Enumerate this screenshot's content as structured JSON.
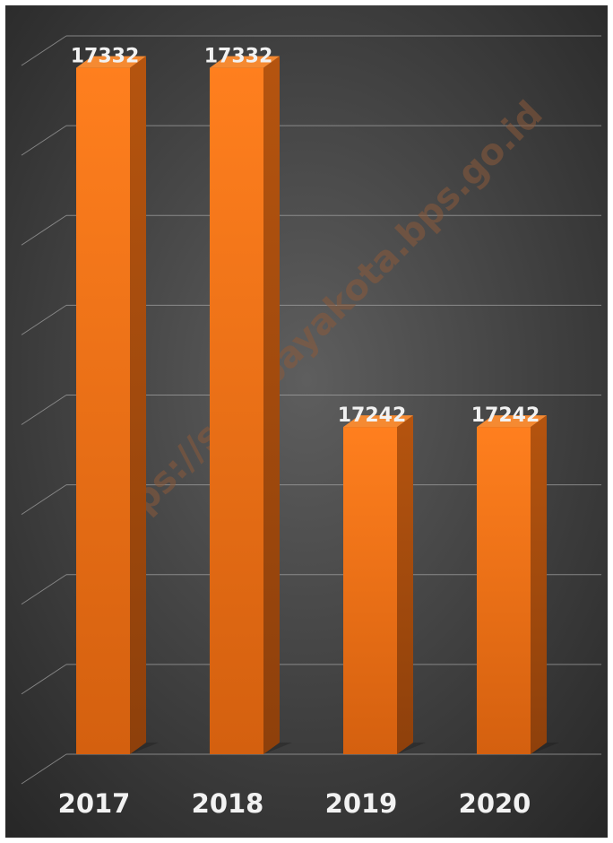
{
  "chart_data": {
    "type": "bar",
    "categories": [
      "2017",
      "2018",
      "2019",
      "2020"
    ],
    "values": [
      17332,
      17332,
      17242,
      17242
    ],
    "data_labels": [
      "17332",
      "17332",
      "17242",
      "17242"
    ],
    "title": "",
    "xlabel": "",
    "ylabel": "",
    "ylim": [
      17160,
      17340
    ],
    "grid": true,
    "legend": "none",
    "style": "3d-column"
  },
  "watermark": "https://surabayakota.bps.go.id",
  "colors": {
    "background_center": "#5e5e5e",
    "background_edge": "#262626",
    "bar_front": "#f07820",
    "bar_side": "#a84d0e",
    "bar_top": "#f58a32",
    "label": "#f2f2f2",
    "grid": "#a6a6a6"
  }
}
